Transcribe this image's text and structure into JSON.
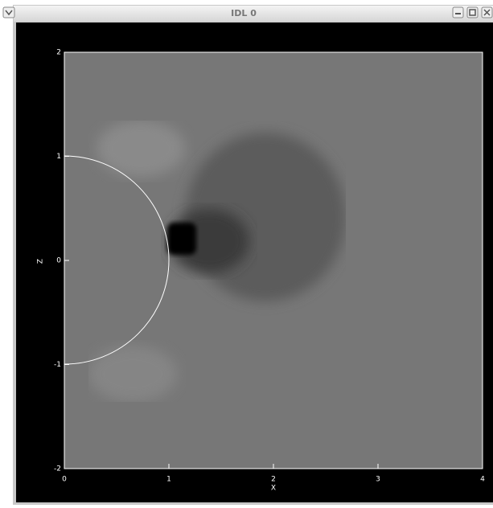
{
  "window": {
    "title": "IDL 0"
  },
  "plot": {
    "xlabel": "X",
    "ylabel": "Z",
    "xlim": [
      0,
      4
    ],
    "ylim": [
      -2,
      2
    ],
    "xticks": [
      0,
      1,
      2,
      3,
      4
    ],
    "yticks": [
      -2,
      -1,
      0,
      1,
      2
    ]
  }
}
